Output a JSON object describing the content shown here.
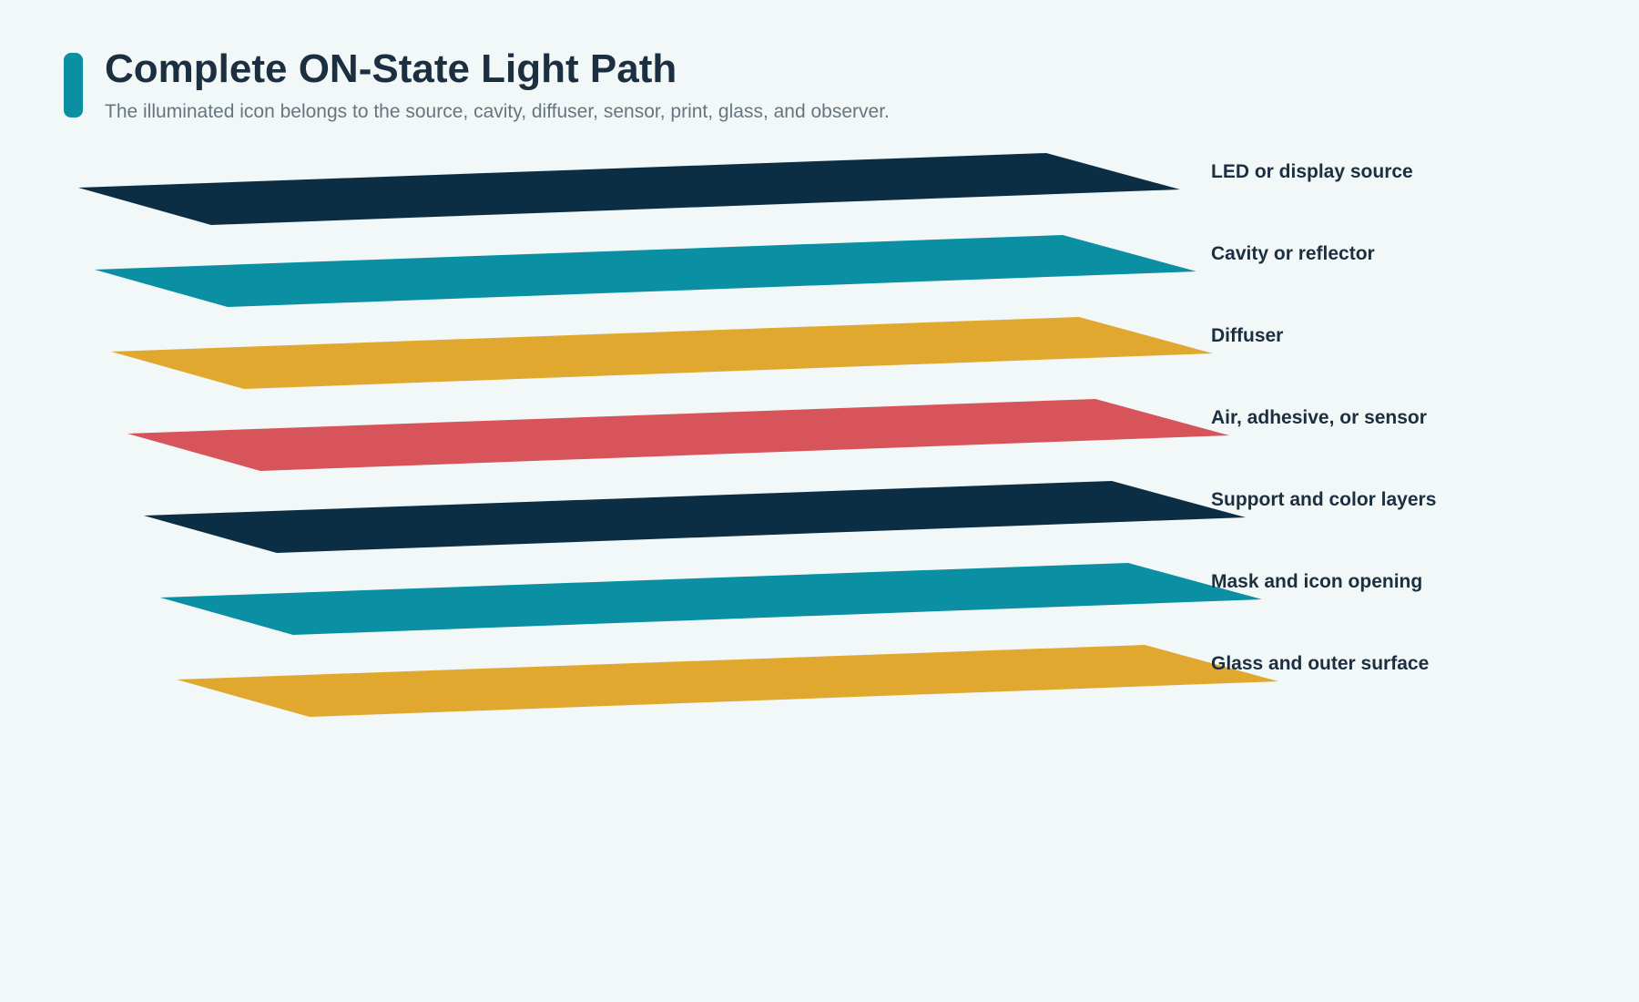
{
  "header": {
    "title": "Complete ON-State Light Path",
    "subtitle": "The illuminated icon belongs to the source, cavity, diffuser, sensor, print, glass, and observer."
  },
  "colors": {
    "accent": "#0b8fa3",
    "background": "#f2f7f7",
    "navy": "#0c2e45",
    "teal": "#0b8fa3",
    "amber": "#e0a82e",
    "coral": "#d7545b"
  },
  "layers": [
    {
      "label": "LED or display source",
      "color": "#0c2e45"
    },
    {
      "label": "Cavity or reflector",
      "color": "#0b8fa3"
    },
    {
      "label": "Diffuser",
      "color": "#e0a82e"
    },
    {
      "label": "Air, adhesive, or sensor",
      "color": "#d7545b"
    },
    {
      "label": "Support and color layers",
      "color": "#0c2e45"
    },
    {
      "label": "Mask and icon opening",
      "color": "#0b8fa3"
    },
    {
      "label": "Glass and outer surface",
      "color": "#e0a82e"
    }
  ]
}
